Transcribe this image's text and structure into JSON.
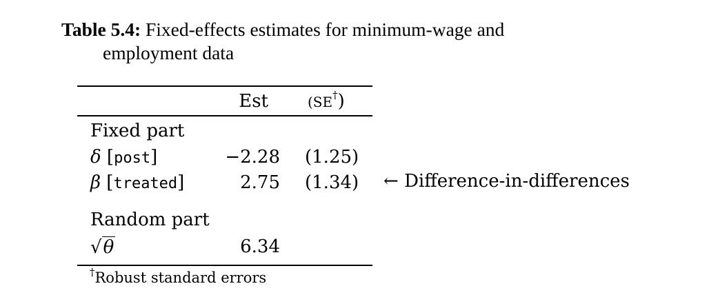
{
  "caption": {
    "label": "Table 5.4:",
    "line1": "Fixed-effects estimates for minimum-wage and",
    "line2": "employment data"
  },
  "table": {
    "headers": {
      "est": "Est",
      "se_prefix": "(SE",
      "se_dagger": "†",
      "se_suffix": ")"
    },
    "fixed_part": {
      "title": "Fixed part",
      "rows": [
        {
          "symbol": "δ",
          "bracket_open": "[",
          "term": "post",
          "bracket_close": "]",
          "est": "−2.28",
          "se": "(1.25)"
        },
        {
          "symbol": "β",
          "bracket_open": "[",
          "term": "treated",
          "bracket_close": "]",
          "est": "2.75",
          "se": "(1.34)"
        }
      ]
    },
    "random_part": {
      "title": "Random part",
      "rows": [
        {
          "sqrt_symbol": "√",
          "symbol": "θ",
          "est": "6.34"
        }
      ]
    },
    "footnote": {
      "dagger": "†",
      "text": "Robust standard errors"
    }
  },
  "annotation": {
    "arrow": "←",
    "text": "Difference-in-differences"
  }
}
